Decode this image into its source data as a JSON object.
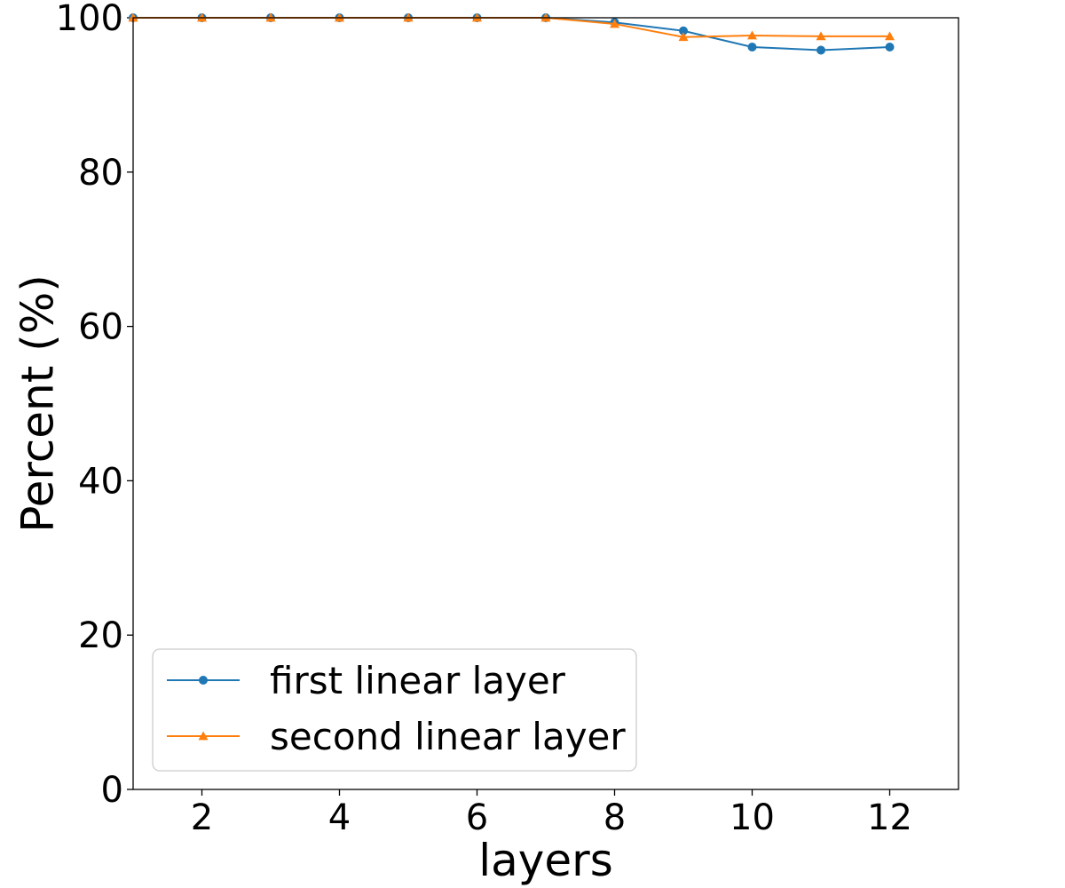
{
  "chart_data": {
    "type": "line",
    "title": "",
    "xlabel": "layers",
    "ylabel": "Percent (%)",
    "xlim": [
      1,
      13
    ],
    "ylim": [
      0,
      100
    ],
    "xticks": [
      2,
      4,
      6,
      8,
      10,
      12
    ],
    "yticks": [
      0,
      20,
      40,
      60,
      80,
      100
    ],
    "grid": false,
    "legend_position": "lower-left",
    "x": [
      1,
      2,
      3,
      4,
      5,
      6,
      7,
      8,
      9,
      10,
      11,
      12
    ],
    "series": [
      {
        "name": "first linear layer",
        "color": "#1f77b4",
        "marker": "circle",
        "values": [
          100,
          100,
          100,
          100,
          100,
          100,
          100,
          99.4,
          98.3,
          96.2,
          95.8,
          96.2
        ]
      },
      {
        "name": "second linear layer",
        "color": "#ff7f0e",
        "marker": "triangle",
        "values": [
          100,
          100,
          100,
          100,
          100,
          100,
          100,
          99.2,
          97.5,
          97.7,
          97.6,
          97.6
        ]
      }
    ]
  }
}
